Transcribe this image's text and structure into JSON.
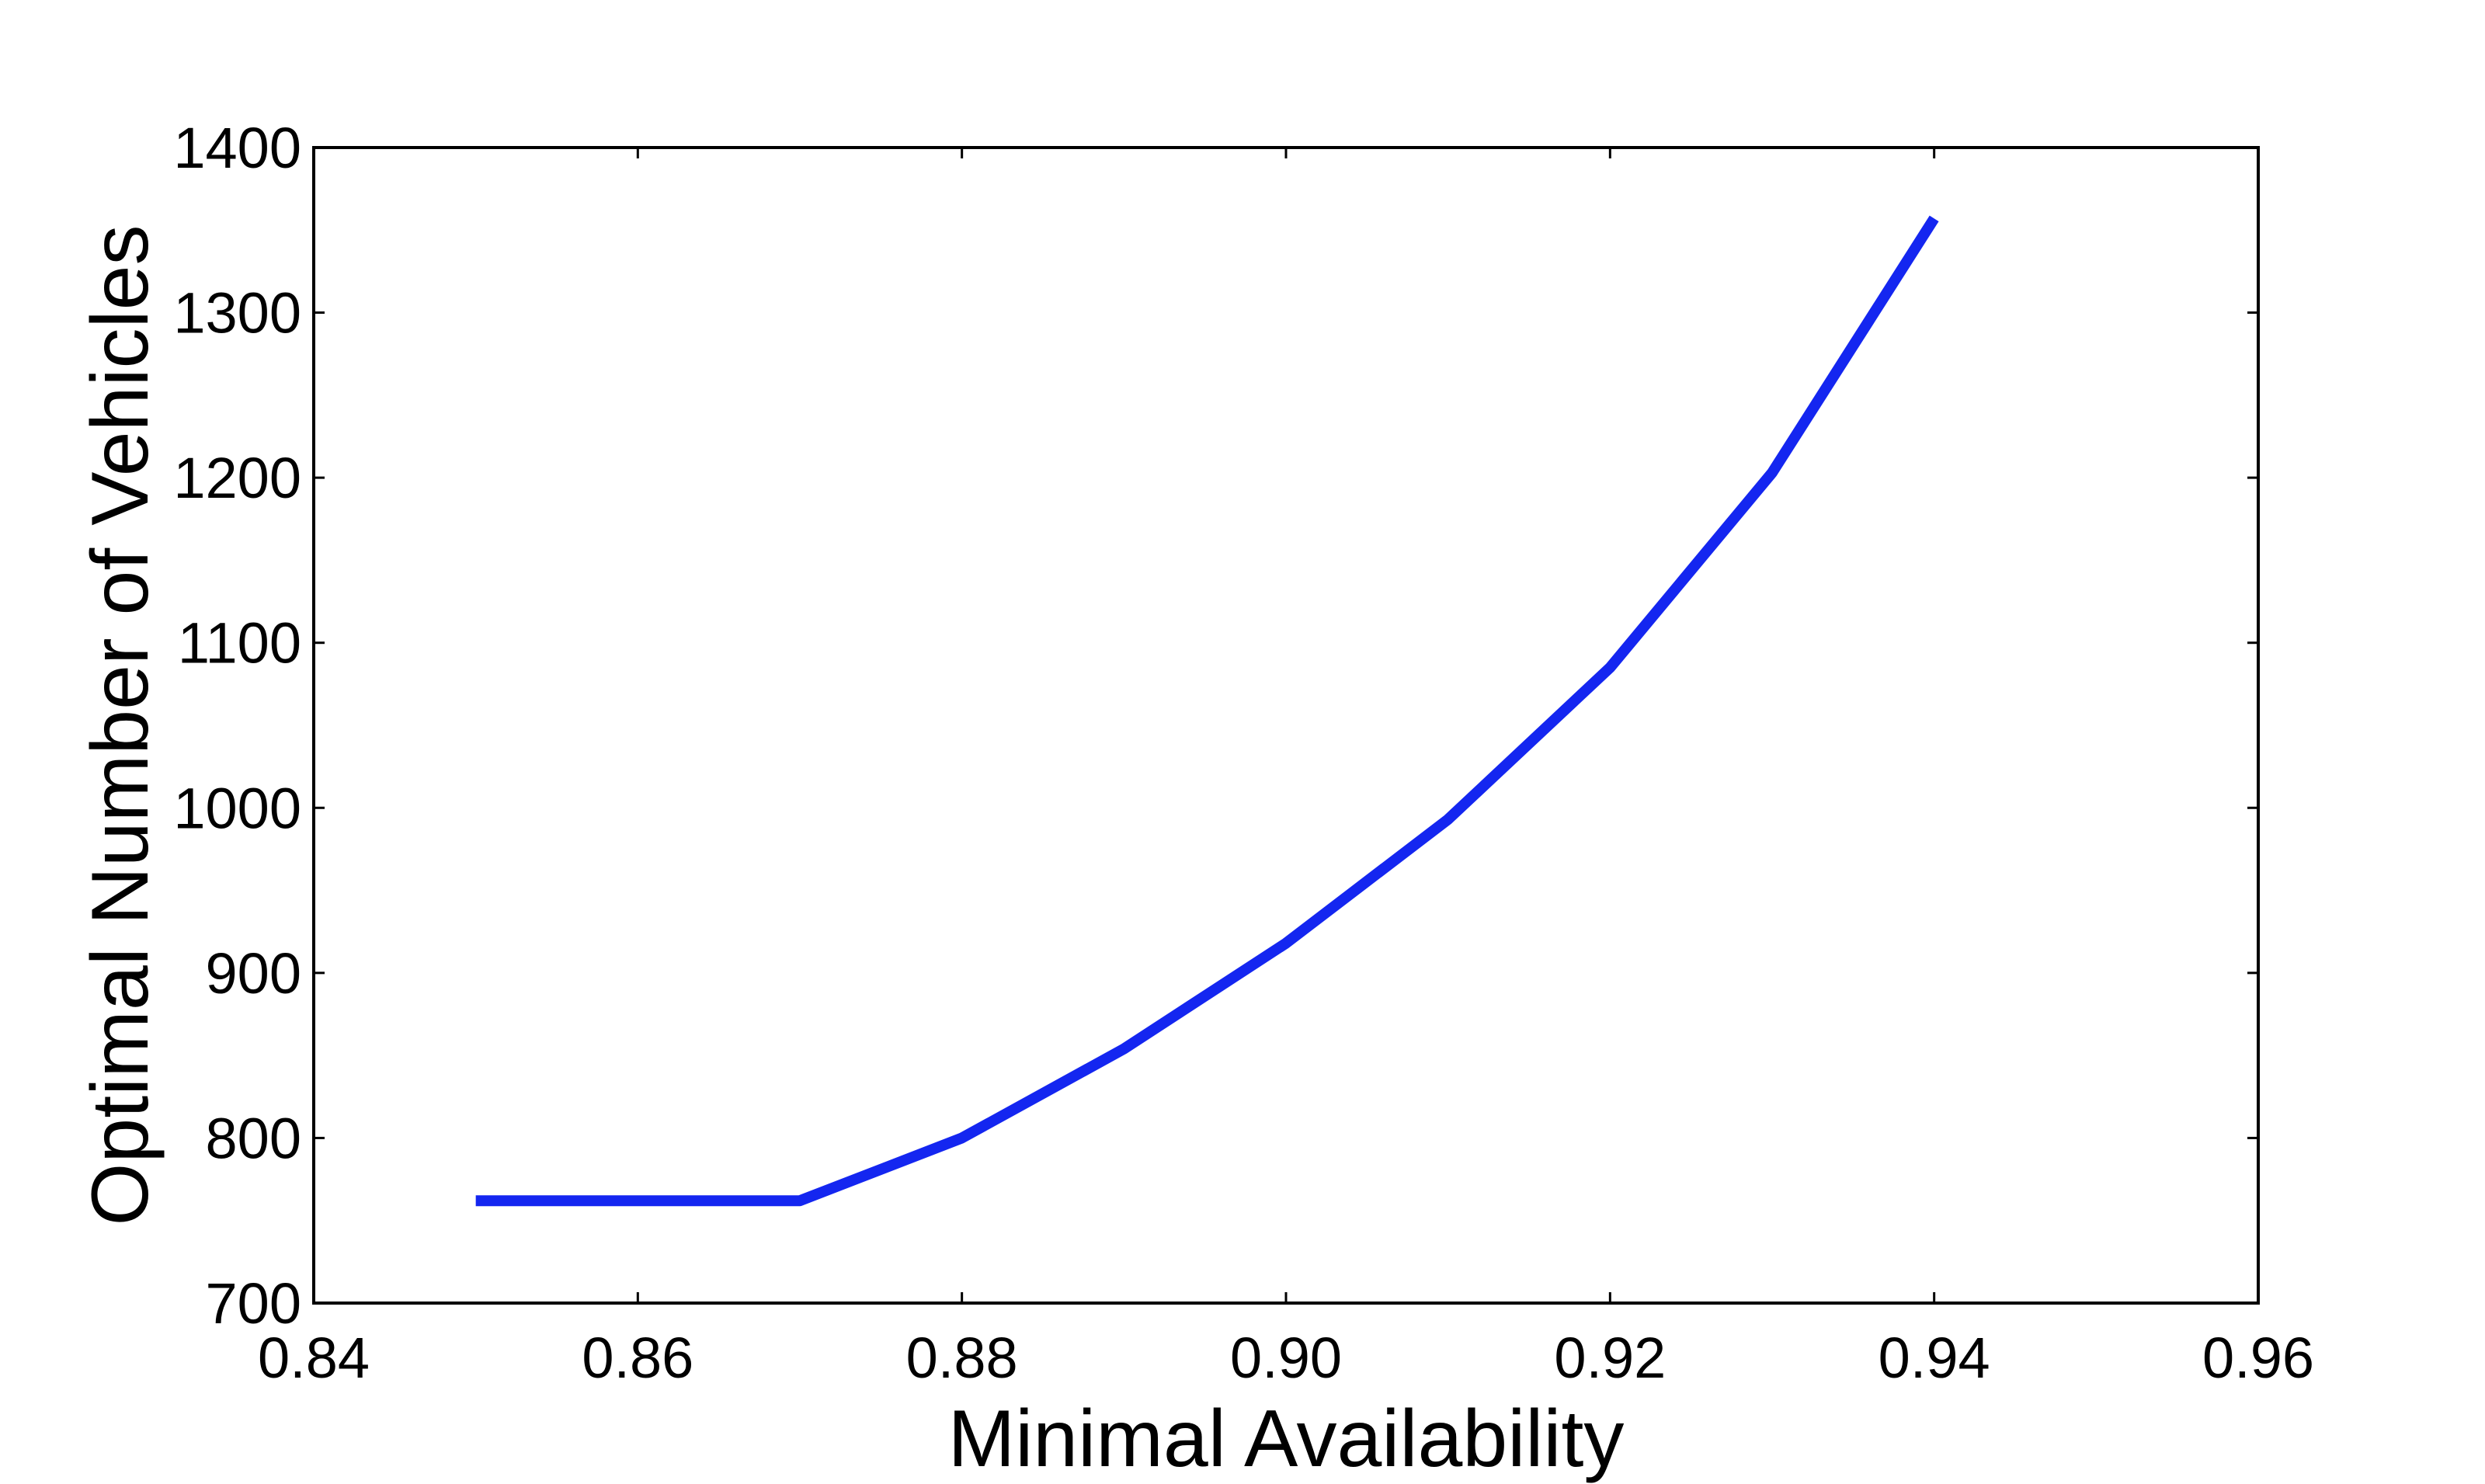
{
  "chart_data": {
    "type": "line",
    "title": "",
    "xlabel": "Minimal Availability",
    "ylabel": "Optimal Number of Vehicles",
    "xlim": [
      0.84,
      0.96
    ],
    "ylim": [
      700,
      1400
    ],
    "x_ticks": [
      "0.84",
      "0.86",
      "0.88",
      "0.90",
      "0.92",
      "0.94",
      "0.96"
    ],
    "y_ticks": [
      "700",
      "800",
      "900",
      "1000",
      "1100",
      "1200",
      "1300",
      "1400"
    ],
    "grid": false,
    "legend": "none",
    "series": [
      {
        "color": "#1426f0",
        "x": [
          0.85,
          0.86,
          0.87,
          0.88,
          0.89,
          0.9,
          0.91,
          0.92,
          0.93,
          0.94
        ],
        "y": [
          762,
          762,
          762,
          800,
          854,
          918,
          993,
          1085,
          1203,
          1357
        ]
      }
    ]
  }
}
